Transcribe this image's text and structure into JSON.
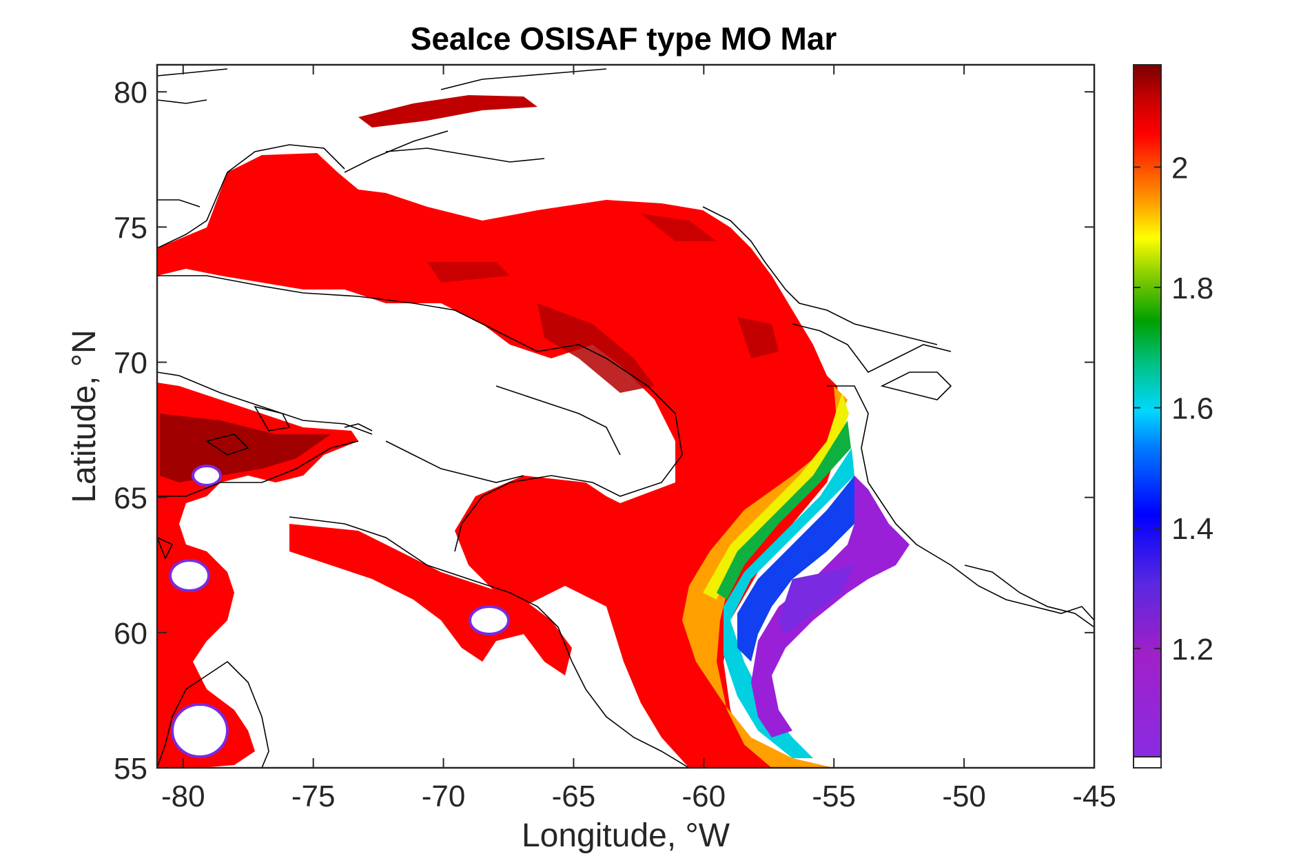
{
  "map": {
    "title": "SeaIce OSISAF type MO Mar",
    "xlabel": "Longitude, °W",
    "ylabel": "Latitude, °N",
    "x_ticks": [
      "-80",
      "-75",
      "-70",
      "-65",
      "-60",
      "-55",
      "-50",
      "-45"
    ],
    "y_ticks": [
      "80",
      "75",
      "70",
      "65",
      "60",
      "55"
    ],
    "colorbar_ticks": [
      "2",
      "1.8",
      "1.6",
      "1.4",
      "1.2"
    ]
  },
  "chart_data": {
    "type": "heatmap",
    "title": "SeaIce OSISAF type MO Mar",
    "xlabel": "Longitude, °W",
    "ylabel": "Latitude, °N",
    "xlim": [
      -81,
      -45
    ],
    "ylim": [
      55,
      81
    ],
    "x_ticks": [
      -80,
      -75,
      -70,
      -65,
      -60,
      -55,
      -50,
      -45
    ],
    "y_ticks": [
      80,
      75,
      70,
      65,
      60,
      55
    ],
    "colorbar": {
      "min": 1.02,
      "max": 2.17,
      "ticks": [
        2,
        1.8,
        1.6,
        1.4,
        1.2
      ],
      "colormap": "jet-like (purple → blue → cyan → green → yellow → orange → red → dark red)"
    },
    "grid": false
  }
}
